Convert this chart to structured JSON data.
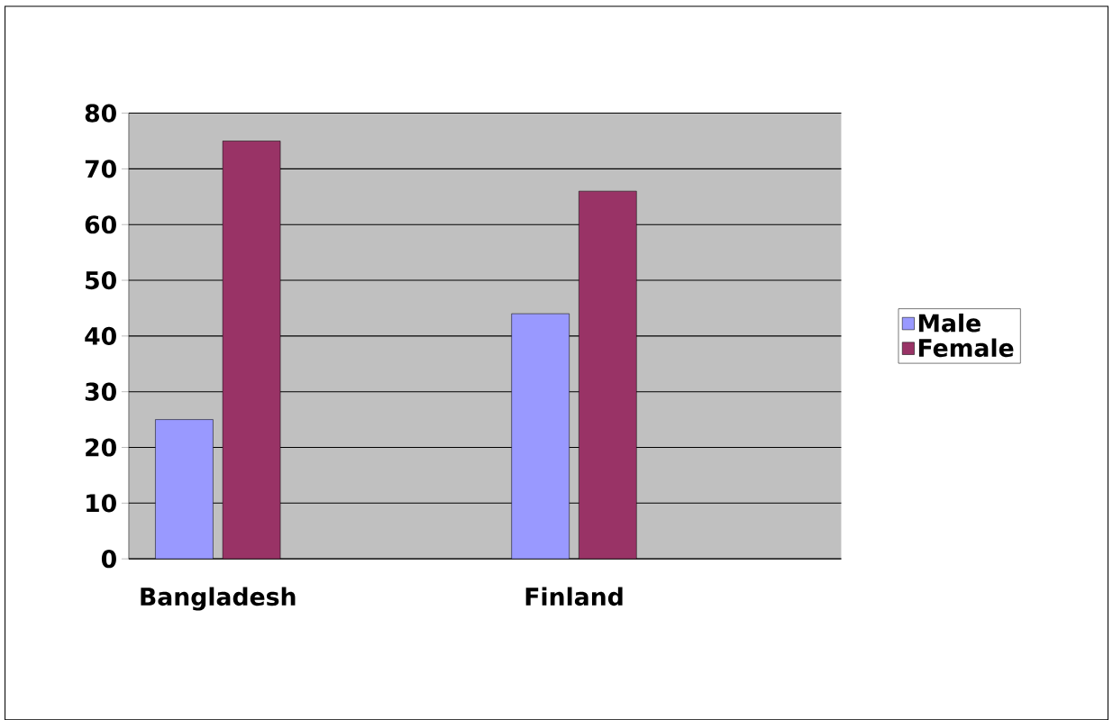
{
  "chart_data": {
    "type": "bar",
    "categories": [
      "Bangladesh",
      null,
      "Finland",
      null
    ],
    "series": [
      {
        "name": "Male",
        "color": "#9999ff",
        "values": [
          25,
          null,
          44,
          null
        ]
      },
      {
        "name": "Female",
        "color": "#993366",
        "values": [
          75,
          null,
          66,
          null
        ]
      }
    ],
    "ylim": [
      0,
      80
    ],
    "yticks": [
      0,
      10,
      20,
      30,
      40,
      50,
      60,
      70,
      80
    ],
    "grid": "y",
    "legend": "right"
  }
}
